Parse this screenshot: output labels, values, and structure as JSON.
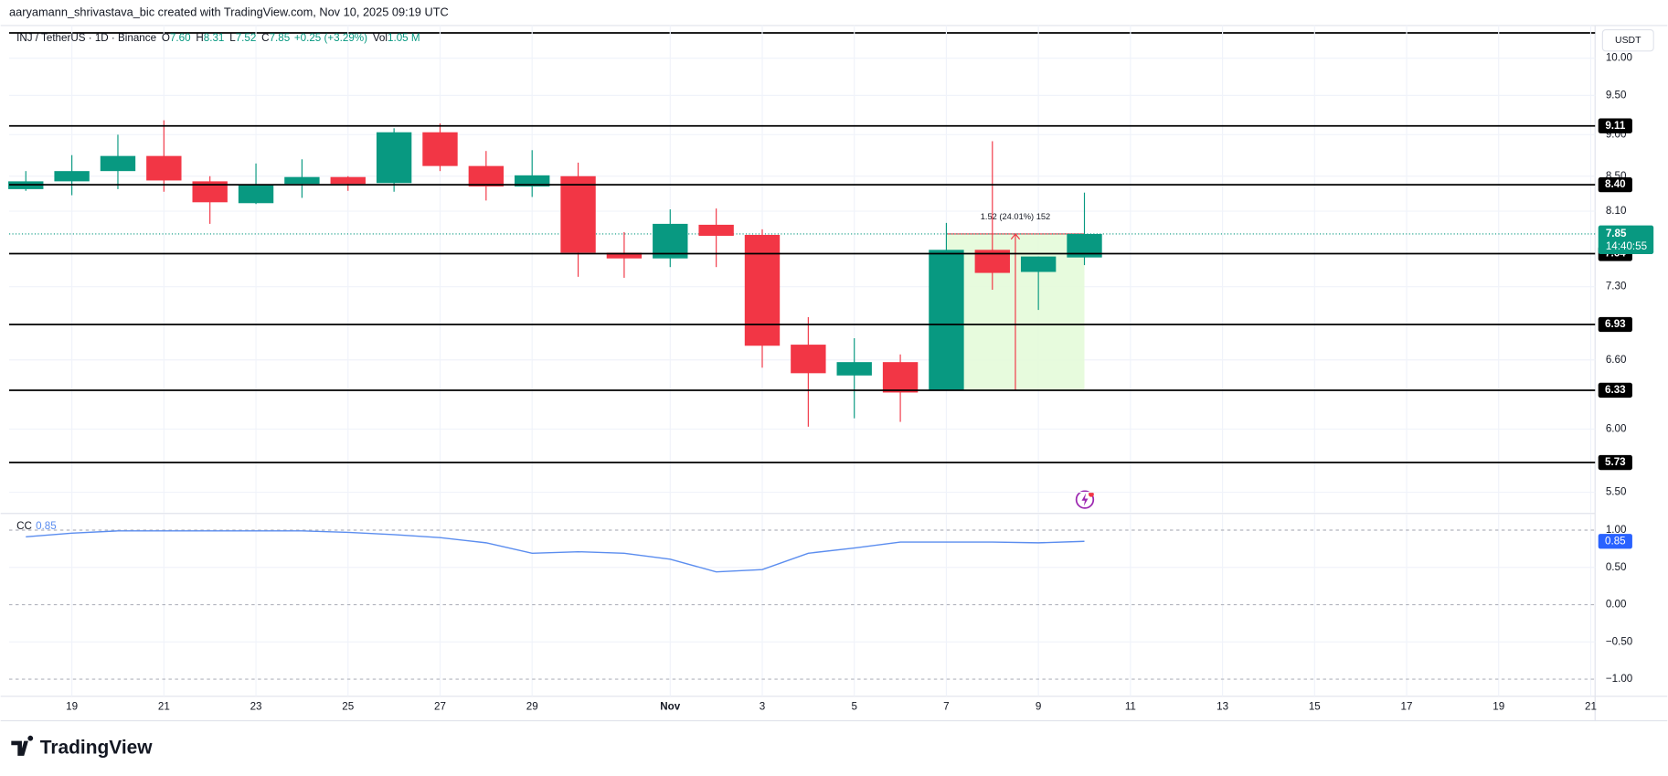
{
  "header": {
    "attribution": "aaryamann_shrivastava_bic created with TradingView.com, Nov 10, 2025 09:19 UTC"
  },
  "footer": {
    "brand": "TradingView"
  },
  "chart_data": [
    {
      "type": "candlestick",
      "legend": {
        "symbol": "INJ / TetherUS · 1D · Binance",
        "fields": [
          {
            "key": "O",
            "value": "7.60"
          },
          {
            "key": "H",
            "value": "8.31"
          },
          {
            "key": "L",
            "value": "7.52"
          },
          {
            "key": "C",
            "value": "7.85"
          }
        ],
        "change": "+0.25 (+3.29%)",
        "volume_key": "Vol",
        "volume": "1.05 M"
      },
      "currency": "USDT",
      "categories": [
        null,
        "19",
        null,
        "21",
        null,
        "23",
        null,
        "25",
        null,
        "27",
        null,
        "29",
        null,
        null,
        "Nov",
        null,
        "3",
        null,
        "5",
        null,
        "7",
        null,
        "9",
        null,
        "11",
        null,
        "13",
        null,
        "15",
        null,
        "17",
        null,
        "19",
        null,
        "21"
      ],
      "open": [
        8.35,
        8.44,
        8.56,
        8.74,
        8.44,
        8.19,
        8.41,
        8.49,
        8.42,
        9.03,
        8.62,
        8.38,
        8.5,
        7.65,
        7.59,
        7.95,
        7.84,
        6.74,
        6.46,
        6.58,
        6.33,
        7.68,
        7.45,
        7.6,
        null,
        null,
        null,
        null,
        null,
        null,
        null,
        null,
        null,
        null,
        null
      ],
      "high": [
        8.56,
        8.75,
        9.0,
        9.18,
        8.5,
        8.65,
        8.7,
        8.5,
        9.08,
        9.14,
        8.8,
        8.81,
        8.66,
        7.87,
        8.12,
        8.13,
        7.9,
        7.0,
        6.8,
        6.65,
        7.97,
        8.92,
        7.61,
        8.31,
        null,
        null,
        null,
        null,
        null,
        null,
        null,
        null,
        null,
        null,
        null
      ],
      "low": [
        8.33,
        8.28,
        8.35,
        8.32,
        7.96,
        8.18,
        8.25,
        8.33,
        8.32,
        8.56,
        8.22,
        8.26,
        7.4,
        7.39,
        7.5,
        7.5,
        6.53,
        6.02,
        6.09,
        6.06,
        6.33,
        7.27,
        7.07,
        7.52,
        null,
        null,
        null,
        null,
        null,
        null,
        null,
        null,
        null,
        null,
        null
      ],
      "close": [
        8.44,
        8.56,
        8.74,
        8.45,
        8.2,
        8.4,
        8.49,
        8.41,
        9.03,
        8.62,
        8.38,
        8.51,
        7.65,
        7.59,
        7.96,
        7.83,
        6.73,
        6.48,
        6.58,
        6.31,
        7.68,
        7.44,
        7.61,
        7.85,
        null,
        null,
        null,
        null,
        null,
        null,
        null,
        null,
        null,
        null,
        null
      ],
      "up_color": "#089981",
      "down_color": "#f23645",
      "log_scale": true,
      "ylim": [
        5.35,
        10.46
      ],
      "yticks": [
        {
          "value": 10,
          "label": "10.00"
        },
        {
          "value": 9.5,
          "label": "9.50"
        },
        {
          "value": 9,
          "label": "9.00"
        },
        {
          "value": 8.5,
          "label": "8.50"
        },
        {
          "value": 8.1,
          "label": "8.10"
        },
        {
          "value": 7.3,
          "label": "7.30"
        },
        {
          "value": 6.6,
          "label": "6.60"
        },
        {
          "value": 6,
          "label": "6.00"
        },
        {
          "value": 5.5,
          "label": "5.50"
        }
      ],
      "grid": true,
      "levels": [
        9.11,
        {
          "value": 8.4,
          "label": "8.40"
        },
        7.64,
        6.93,
        6.33,
        5.73
      ],
      "last_price": 7.85,
      "countdown": "14:40:55",
      "measure": {
        "label": "1.52 (24.01%) 152",
        "from": 6.33,
        "to": 7.85
      }
    },
    {
      "type": "line",
      "title": "CC",
      "series": [
        {
          "name": "CC",
          "color": "#5b8def",
          "values": [
            0.91,
            0.96,
            0.99,
            0.99,
            0.99,
            0.99,
            0.99,
            0.97,
            0.94,
            0.9,
            0.83,
            0.69,
            0.71,
            0.69,
            0.61,
            0.44,
            0.47,
            0.69,
            0.76,
            0.84,
            0.84,
            0.84,
            0.83,
            0.85,
            null,
            null,
            null,
            null,
            null,
            null,
            null,
            null,
            null,
            null,
            null
          ]
        }
      ],
      "ylim": [
        -1.23,
        1.21
      ],
      "yticks": [
        {
          "value": 1,
          "label": "1.00"
        },
        {
          "value": 0.5,
          "label": "0.50"
        },
        {
          "value": 0,
          "label": "0.00"
        },
        {
          "value": -0.5,
          "label": "−0.50"
        },
        {
          "value": -1,
          "label": "−1.00"
        }
      ]
    }
  ]
}
